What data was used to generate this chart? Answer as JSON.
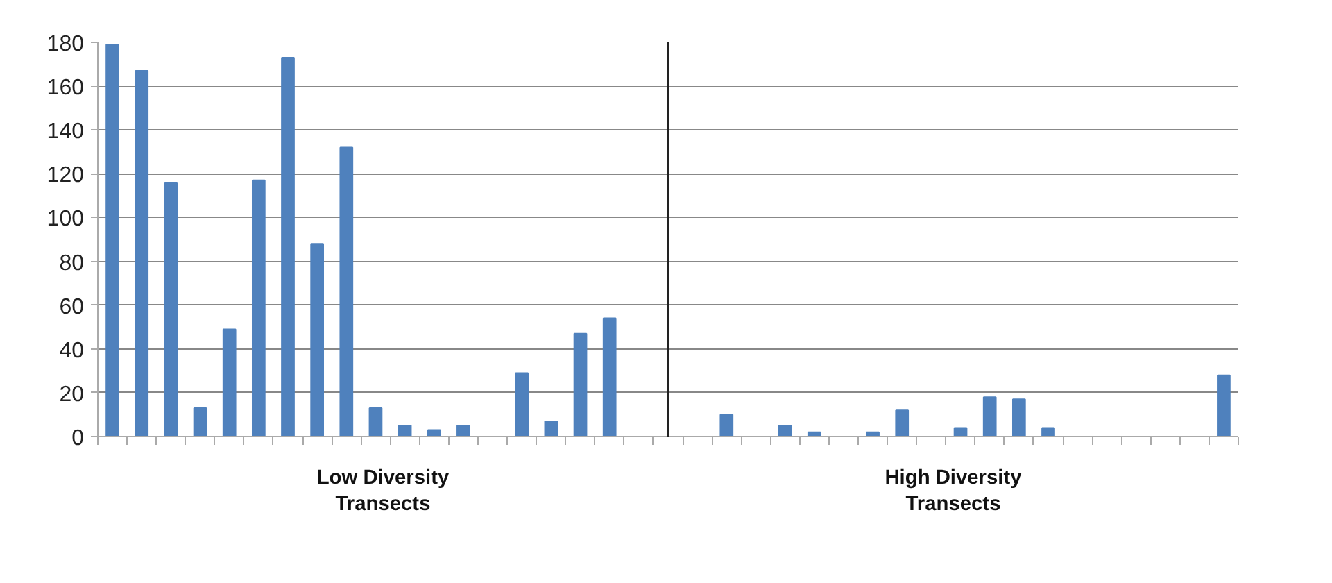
{
  "chart_data": {
    "type": "bar",
    "categories": [
      null,
      null,
      null,
      null,
      null,
      null,
      null,
      null,
      null,
      null,
      null,
      null,
      null,
      null,
      null,
      null,
      null,
      null,
      null,
      null,
      null,
      null,
      null,
      null,
      null,
      null,
      null,
      null,
      null,
      null,
      null,
      null,
      null,
      null,
      null,
      null,
      null,
      null,
      null
    ],
    "values": [
      179,
      167,
      116,
      13,
      49,
      117,
      173,
      88,
      132,
      13,
      5,
      3,
      5,
      0,
      29,
      7,
      47,
      54,
      0,
      0,
      0,
      10,
      0,
      5,
      2,
      0,
      2,
      12,
      0,
      4,
      18,
      17,
      4,
      0,
      0,
      0,
      0,
      0,
      28
    ],
    "color": "#4f81bd",
    "ylim": [
      0,
      180
    ],
    "yticks": [
      0,
      20,
      40,
      60,
      80,
      100,
      120,
      140,
      160,
      180
    ],
    "grid": "y",
    "annotations": [
      "Low Diversity\nTransects",
      "High Diversity\nTransects"
    ]
  }
}
